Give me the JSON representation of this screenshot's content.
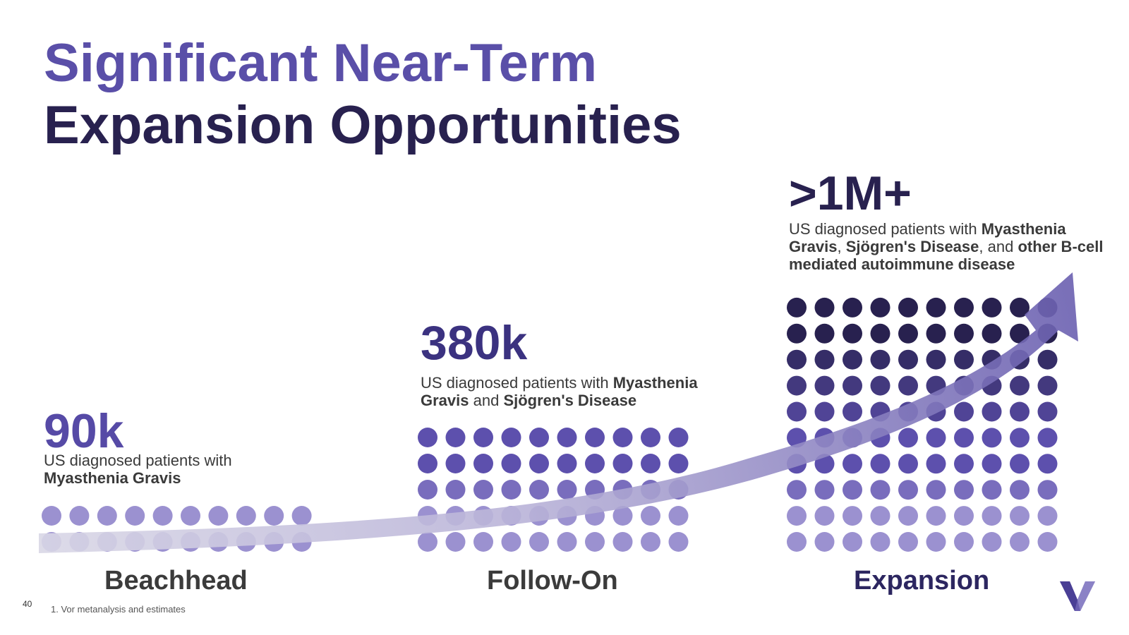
{
  "title": {
    "line1": "Significant Near-Term",
    "line2": "Expansion Opportunities"
  },
  "stages": {
    "beachhead": {
      "number": "90k",
      "desc_plain_1": "US diagnosed patients with",
      "desc_bold_1": "Myasthenia Gravis",
      "label": "Beachhead",
      "dot_grid": {
        "columns": 10,
        "rows": 2
      }
    },
    "followon": {
      "number": "380k",
      "desc_plain_1": "US diagnosed patients with ",
      "desc_bold_1": "Myasthenia Gravis",
      "desc_plain_2": " and ",
      "desc_bold_2": "Sjögren's Disease",
      "label": "Follow-On",
      "dot_grid": {
        "columns": 10,
        "rows": 5
      }
    },
    "expansion": {
      "number": ">1M+",
      "desc_plain_1": "US diagnosed patients with ",
      "desc_bold_1": "Myasthenia Gravis",
      "desc_plain_2": ", ",
      "desc_bold_2": "Sjögren's Disease",
      "desc_plain_3": ", and ",
      "desc_bold_3": "other B-cell mediated autoimmune disease",
      "label": "Expansion",
      "dot_grid": {
        "columns": 10,
        "rows": 10
      }
    }
  },
  "footnote": "1. Vor metanalysis and estimates",
  "page_number": "40",
  "logo_icon": "v-logo-icon",
  "colors": {
    "title_accent": "#5a4fa8",
    "title_dark": "#28214f",
    "dot_light": "#9b91d0",
    "dot_mid": "#5d50ad",
    "dot_dark": "#28214f",
    "arrow": "#6a5fb0"
  }
}
